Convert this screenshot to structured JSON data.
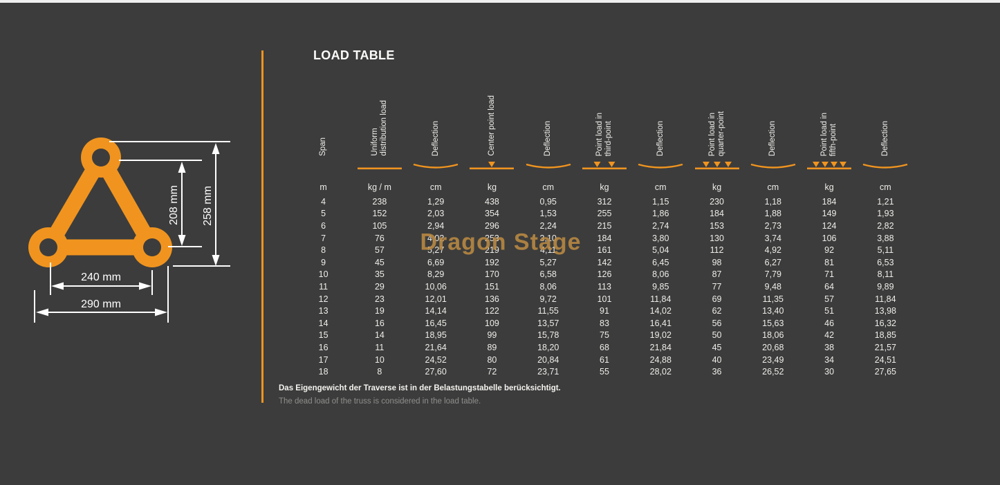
{
  "page": {
    "bg_color": "#3c3c3c",
    "accent_color": "#f0941f",
    "watermark_color": "#bb8a42",
    "title": "LOAD TABLE",
    "watermark": "Dragon Stage"
  },
  "diagram": {
    "dims": {
      "inner_height": "208 mm",
      "outer_height": "258 mm",
      "inner_width": "240 mm",
      "outer_width": "290 mm"
    }
  },
  "table": {
    "columns": [
      {
        "label": "Span",
        "symbol": "none",
        "unit": "m"
      },
      {
        "label": "Uniform\ndistribution load",
        "symbol": "line",
        "unit": "kg / m"
      },
      {
        "label": "Deflection",
        "symbol": "sag",
        "unit": "cm"
      },
      {
        "label": "Center point load",
        "symbol": "arrows-1",
        "unit": "kg"
      },
      {
        "label": "Deflection",
        "symbol": "sag",
        "unit": "cm"
      },
      {
        "label": "Point load in\nthird-point",
        "symbol": "arrows-2",
        "unit": "kg"
      },
      {
        "label": "Deflection",
        "symbol": "sag",
        "unit": "cm"
      },
      {
        "label": "Point load in\nquarter-point",
        "symbol": "arrows-3",
        "unit": "kg"
      },
      {
        "label": "Deflection",
        "symbol": "sag",
        "unit": "cm"
      },
      {
        "label": "Point load in\nfifth-point",
        "symbol": "arrows-4",
        "unit": "kg"
      },
      {
        "label": "Deflection",
        "symbol": "sag",
        "unit": "cm"
      }
    ],
    "rows": [
      [
        "4",
        "238",
        "1,29",
        "438",
        "0,95",
        "312",
        "1,15",
        "230",
        "1,18",
        "184",
        "1,21"
      ],
      [
        "5",
        "152",
        "2,03",
        "354",
        "1,53",
        "255",
        "1,86",
        "184",
        "1,88",
        "149",
        "1,93"
      ],
      [
        "6",
        "105",
        "2,94",
        "296",
        "2,24",
        "215",
        "2,74",
        "153",
        "2,73",
        "124",
        "2,82"
      ],
      [
        "7",
        "76",
        "4,02",
        "253",
        "3,10",
        "184",
        "3,80",
        "130",
        "3,74",
        "106",
        "3,88"
      ],
      [
        "8",
        "57",
        "5,27",
        "219",
        "4,11",
        "161",
        "5,04",
        "112",
        "4,92",
        "92",
        "5,11"
      ],
      [
        "9",
        "45",
        "6,69",
        "192",
        "5,27",
        "142",
        "6,45",
        "98",
        "6,27",
        "81",
        "6,53"
      ],
      [
        "10",
        "35",
        "8,29",
        "170",
        "6,58",
        "126",
        "8,06",
        "87",
        "7,79",
        "71",
        "8,11"
      ],
      [
        "11",
        "29",
        "10,06",
        "151",
        "8,06",
        "113",
        "9,85",
        "77",
        "9,48",
        "64",
        "9,89"
      ],
      [
        "12",
        "23",
        "12,01",
        "136",
        "9,72",
        "101",
        "11,84",
        "69",
        "11,35",
        "57",
        "11,84"
      ],
      [
        "13",
        "19",
        "14,14",
        "122",
        "11,55",
        "91",
        "14,02",
        "62",
        "13,40",
        "51",
        "13,98"
      ],
      [
        "14",
        "16",
        "16,45",
        "109",
        "13,57",
        "83",
        "16,41",
        "56",
        "15,63",
        "46",
        "16,32"
      ],
      [
        "15",
        "14",
        "18,95",
        "99",
        "15,78",
        "75",
        "19,02",
        "50",
        "18,06",
        "42",
        "18,85"
      ],
      [
        "16",
        "11",
        "21,64",
        "89",
        "18,20",
        "68",
        "21,84",
        "45",
        "20,68",
        "38",
        "21,57"
      ],
      [
        "17",
        "10",
        "24,52",
        "80",
        "20,84",
        "61",
        "24,88",
        "40",
        "23,49",
        "34",
        "24,51"
      ],
      [
        "18",
        "8",
        "27,60",
        "72",
        "23,71",
        "55",
        "28,02",
        "36",
        "26,52",
        "30",
        "27,65"
      ]
    ]
  },
  "footnotes": {
    "de": "Das Eigengewicht der Traverse ist in der Belastungstabelle berücksichtigt.",
    "en": "The dead load of the truss is considered in the load table."
  }
}
